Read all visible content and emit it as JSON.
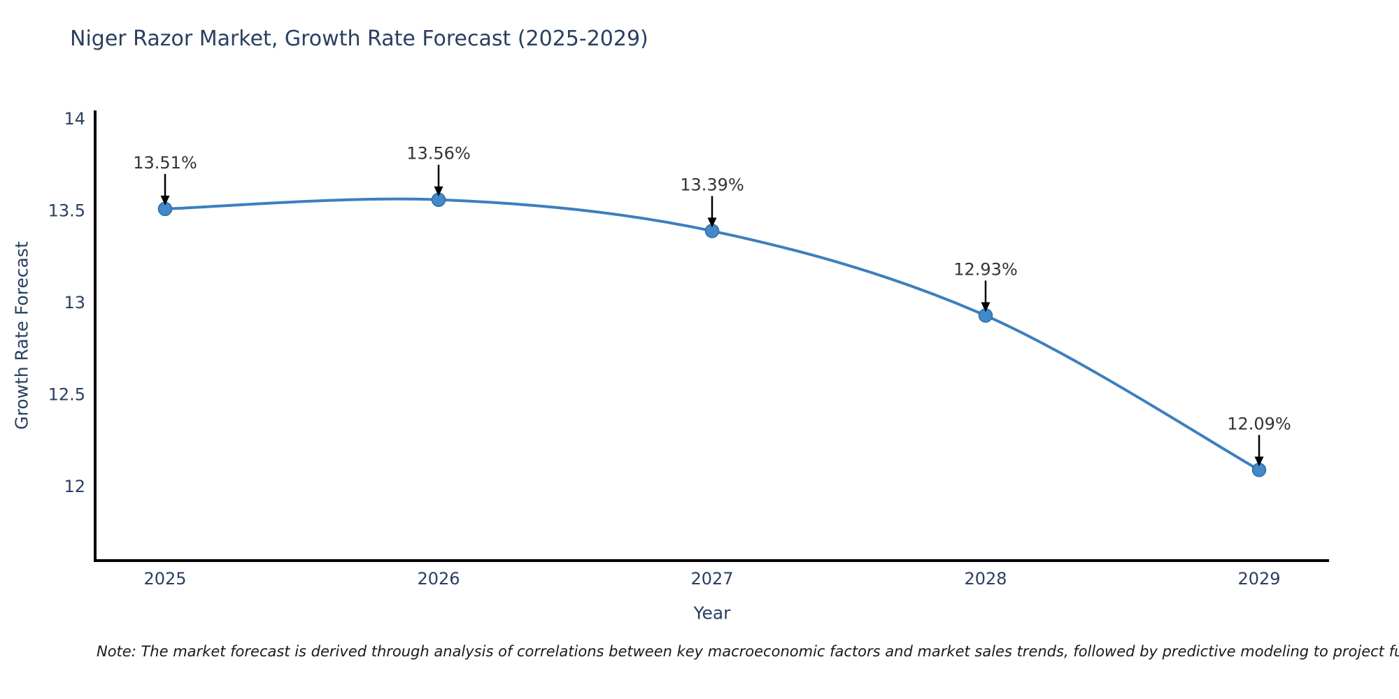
{
  "chart_data": {
    "type": "line",
    "title": "Niger Razor Market, Growth Rate Forecast (2025-2029)",
    "xlabel": "Year",
    "ylabel": "Growth Rate Forecast",
    "x": [
      2025,
      2026,
      2027,
      2028,
      2029
    ],
    "values": [
      13.51,
      13.56,
      13.39,
      12.93,
      12.09
    ],
    "point_labels": [
      "13.51%",
      "13.56%",
      "13.39%",
      "12.93%",
      "12.09%"
    ],
    "xtick_labels": [
      "2025",
      "2026",
      "2027",
      "2028",
      "2029"
    ],
    "yticks": [
      14,
      13.5,
      13,
      12.5,
      12
    ],
    "ytick_labels": [
      "14",
      "13.5",
      "13",
      "12.5",
      "12"
    ],
    "ylim": [
      11.6,
      14.05
    ],
    "grid": false,
    "legend": "none",
    "colors": {
      "line": "#3d7fbe",
      "marker": "#4389c8",
      "marker_edge": "#2e6ca8",
      "axis": "#000000",
      "tick_text": "#2a3f5f",
      "annotation_text": "#333333",
      "arrow": "#000000"
    }
  },
  "note": "Note: The market forecast is derived through analysis of correlations between key macroeconomic factors and market sales trends, followed by predictive modeling to project future sal"
}
